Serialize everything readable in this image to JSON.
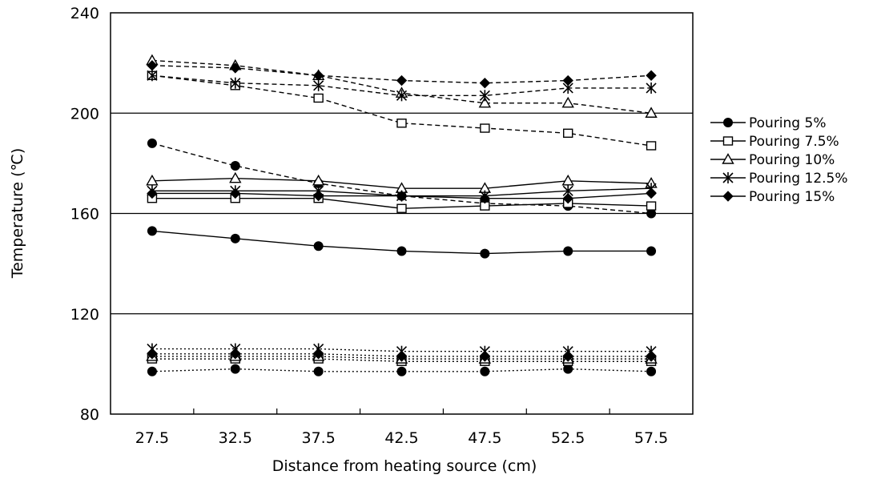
{
  "chart_data": {
    "type": "line",
    "title": "",
    "xlabel": "Distance from heating source (cm)",
    "ylabel": "Temperature (℃)",
    "x": [
      "27.5",
      "32.5",
      "37.5",
      "42.5",
      "47.5",
      "52.5",
      "57.5"
    ],
    "ylim": [
      80,
      240
    ],
    "yticks": [
      "80",
      "120",
      "160",
      "200",
      "240"
    ],
    "grid": "horizontal",
    "legend_position": "right",
    "legend": [
      {
        "name": "Pouring 5%",
        "marker": "filled-circle"
      },
      {
        "name": "Pouring 7.5%",
        "marker": "open-square"
      },
      {
        "name": "Pouring 10%",
        "marker": "open-triangle"
      },
      {
        "name": "Pouring 12.5%",
        "marker": "star"
      },
      {
        "name": "Pouring 15%",
        "marker": "filled-diamond"
      }
    ],
    "groups": [
      {
        "line_style": "dashed",
        "series": [
          {
            "name": "Pouring 5%",
            "values": [
              188,
              179,
              172,
              167,
              164,
              163,
              160
            ]
          },
          {
            "name": "Pouring 7.5%",
            "values": [
              215,
              211,
              206,
              196,
              194,
              192,
              187
            ]
          },
          {
            "name": "Pouring 10%",
            "values": [
              221,
              219,
              215,
              208,
              204,
              204,
              200
            ]
          },
          {
            "name": "Pouring 12.5%",
            "values": [
              215,
              212,
              211,
              207,
              207,
              210,
              210
            ]
          },
          {
            "name": "Pouring 15%",
            "values": [
              219,
              218,
              215,
              213,
              212,
              213,
              215
            ]
          }
        ]
      },
      {
        "line_style": "solid",
        "series": [
          {
            "name": "Pouring 5%",
            "values": [
              153,
              150,
              147,
              145,
              144,
              145,
              145
            ]
          },
          {
            "name": "Pouring 7.5%",
            "values": [
              166,
              166,
              166,
              162,
              163,
              164,
              163
            ]
          },
          {
            "name": "Pouring 10%",
            "values": [
              173,
              174,
              173,
              170,
              170,
              173,
              172
            ]
          },
          {
            "name": "Pouring 12.5%",
            "values": [
              169,
              169,
              169,
              167,
              167,
              169,
              170
            ]
          },
          {
            "name": "Pouring 15%",
            "values": [
              168,
              168,
              167,
              167,
              166,
              166,
              168
            ]
          }
        ]
      },
      {
        "line_style": "dotted",
        "series": [
          {
            "name": "Pouring 5%",
            "values": [
              97,
              98,
              97,
              97,
              97,
              98,
              97
            ]
          },
          {
            "name": "Pouring 7.5%",
            "values": [
              102,
              102,
              102,
              101,
              101,
              101,
              101
            ]
          },
          {
            "name": "Pouring 10%",
            "values": [
              103,
              103,
              103,
              102,
              102,
              102,
              102
            ]
          },
          {
            "name": "Pouring 12.5%",
            "values": [
              106,
              106,
              106,
              105,
              105,
              105,
              105
            ]
          },
          {
            "name": "Pouring 15%",
            "values": [
              104,
              104,
              104,
              103,
              103,
              103,
              103
            ]
          }
        ]
      }
    ]
  }
}
